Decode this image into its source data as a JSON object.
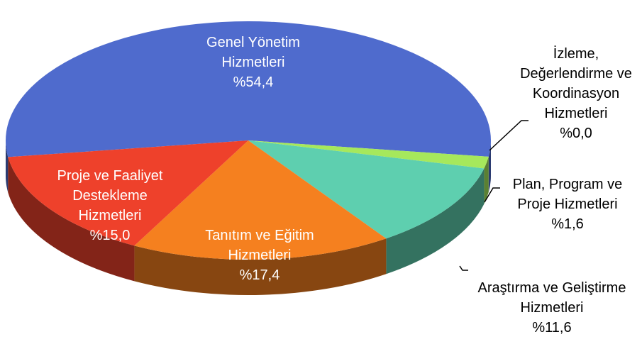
{
  "chart_data": {
    "type": "pie3d",
    "categories": [
      "Genel Yönetim Hizmetleri",
      "İzleme, Değerlendirme ve Koordinasyon Hizmetleri",
      "Plan, Program ve Proje Hizmetleri",
      "Araştırma ve Geliştirme Hizmetleri",
      "Tanıtım ve Eğitim Hizmetleri",
      "Proje ve Faaliyet Destekleme Hizmetleri"
    ],
    "values": [
      54.4,
      0.0,
      1.6,
      11.6,
      17.4,
      15.0
    ],
    "value_labels": [
      "%54,4",
      "%0,0",
      "%1,6",
      "%11,6",
      "%17,4",
      "%15,0"
    ],
    "colors": [
      "#4f6bcd",
      "#7f7f7f",
      "#a6e85c",
      "#5ecfaf",
      "#f5801f",
      "#ee412b"
    ]
  }
}
